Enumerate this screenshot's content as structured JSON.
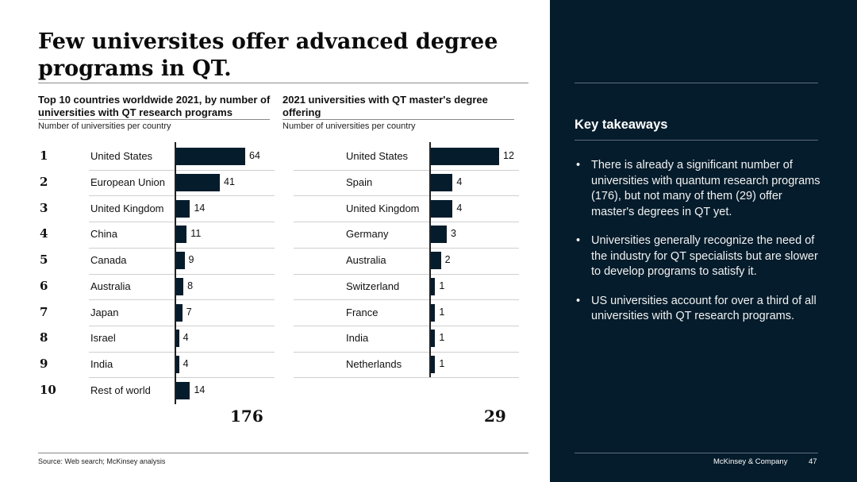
{
  "slide": {
    "title": "Few universites offer advanced degree programs in QT.",
    "source": "Source: Web search; McKinsey analysis"
  },
  "chart_data": [
    {
      "type": "bar",
      "orientation": "horizontal",
      "title": "Top 10 countries worldwide 2021, by number of universities with QT research programs",
      "subtitle": "Number of universities per country",
      "ranks": [
        "1",
        "2",
        "3",
        "4",
        "5",
        "6",
        "7",
        "8",
        "9",
        "10"
      ],
      "categories": [
        "United States",
        "European Union",
        "United Kingdom",
        "China",
        "Canada",
        "Australia",
        "Japan",
        "Israel",
        "India",
        "Rest of world"
      ],
      "values": [
        64,
        41,
        14,
        11,
        9,
        8,
        7,
        4,
        4,
        14
      ],
      "total": "176",
      "max": 64
    },
    {
      "type": "bar",
      "orientation": "horizontal",
      "title": "2021 universities with QT master's degree offering",
      "subtitle": "Number of universities per country",
      "categories": [
        "United States",
        "Spain",
        "United Kingdom",
        "Germany",
        "Australia",
        "Switzerland",
        "France",
        "India",
        "Netherlands"
      ],
      "values": [
        12,
        4,
        4,
        3,
        2,
        1,
        1,
        1,
        1
      ],
      "total": "29",
      "max": 12
    }
  ],
  "panel": {
    "heading": "Key takeaways",
    "bullets": [
      "There is already a significant number of universities with quantum research programs (176), but not many of them (29) offer master's degrees in QT yet.",
      "Universities generally recognize the need of the industry for QT specialists but are slower to develop programs to satisfy it.",
      "US universities account for over a third of all universities with QT research programs."
    ],
    "footer_brand": "McKinsey & Company",
    "page_number": "47"
  }
}
